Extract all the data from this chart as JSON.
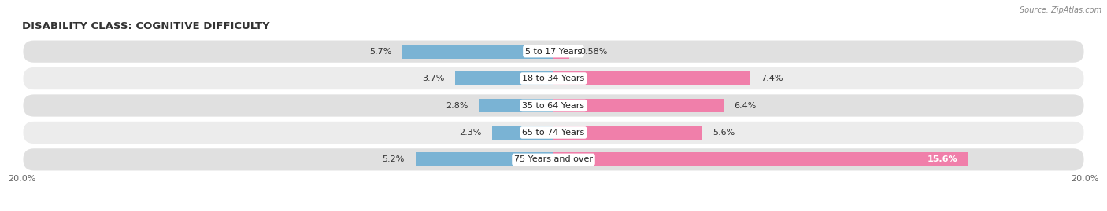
{
  "title": "DISABILITY CLASS: COGNITIVE DIFFICULTY",
  "source": "Source: ZipAtlas.com",
  "categories": [
    "5 to 17 Years",
    "18 to 34 Years",
    "35 to 64 Years",
    "65 to 74 Years",
    "75 Years and over"
  ],
  "male_values": [
    5.7,
    3.7,
    2.8,
    2.3,
    5.2
  ],
  "female_values": [
    0.58,
    7.4,
    6.4,
    5.6,
    15.6
  ],
  "male_labels": [
    "5.7%",
    "3.7%",
    "2.8%",
    "2.3%",
    "5.2%"
  ],
  "female_labels": [
    "0.58%",
    "7.4%",
    "6.4%",
    "5.6%",
    "15.6%"
  ],
  "male_color": "#7ab3d4",
  "female_color": "#f07faa",
  "axis_max": 20.0,
  "bg_color": "#ffffff",
  "row_bg_light": "#e8e8e8",
  "row_bg_dark": "#d8d8d8",
  "title_fontsize": 9.5,
  "label_fontsize": 8,
  "tick_fontsize": 8,
  "legend_fontsize": 8.5
}
